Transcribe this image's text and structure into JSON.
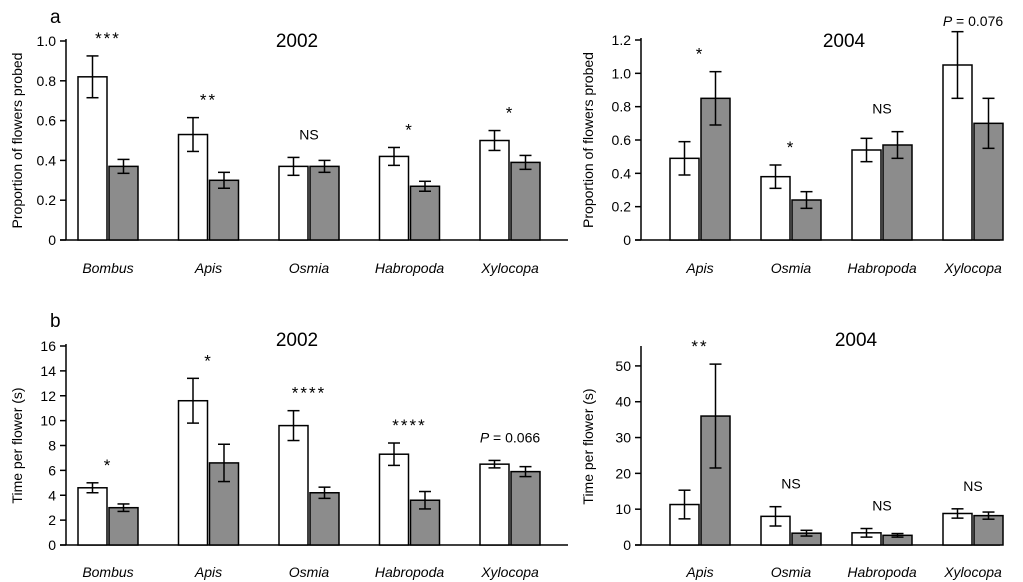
{
  "panel_labels": {
    "a": "a",
    "b": "b"
  },
  "colors": {
    "control": "#ffffff",
    "treatment": "#8c8c8c",
    "stroke": "#000000"
  },
  "chart_data": [
    {
      "type": "bar",
      "title": "2002",
      "ylabel": "Proportion of flowers probed",
      "ylim": [
        0,
        1.0
      ],
      "yticks": [
        0,
        0.2,
        0.4,
        0.6,
        0.8,
        1.0
      ],
      "ytick_labels": [
        "0",
        "0.2",
        "0.4",
        "0.6",
        "0.8",
        "1.0"
      ],
      "categories": [
        "Bombus",
        "Apis",
        "Osmia",
        "Habropoda",
        "Xylocopa"
      ],
      "series": [
        {
          "fill": "#ffffff",
          "values": [
            0.82,
            0.53,
            0.37,
            0.42,
            0.5
          ],
          "errors": [
            0.105,
            0.085,
            0.045,
            0.045,
            0.05
          ]
        },
        {
          "fill": "#8c8c8c",
          "values": [
            0.37,
            0.3,
            0.37,
            0.27,
            0.39
          ],
          "errors": [
            0.035,
            0.04,
            0.03,
            0.025,
            0.035
          ]
        }
      ],
      "significance": [
        "***",
        "**",
        "NS",
        "*",
        "*"
      ]
    },
    {
      "type": "bar",
      "title": "2004",
      "ylabel": "Proportion of flowers probed",
      "ylim": [
        0,
        1.2
      ],
      "yticks": [
        0,
        0.2,
        0.4,
        0.6,
        0.8,
        1.0,
        1.2
      ],
      "ytick_labels": [
        "0",
        "0.2",
        "0.4",
        "0.6",
        "0.8",
        "1.0",
        "1.2"
      ],
      "categories": [
        "Apis",
        "Osmia",
        "Habropoda",
        "Xylocopa"
      ],
      "series": [
        {
          "fill": "#ffffff",
          "values": [
            0.49,
            0.38,
            0.54,
            1.05
          ],
          "errors": [
            0.1,
            0.07,
            0.07,
            0.2
          ]
        },
        {
          "fill": "#8c8c8c",
          "values": [
            0.85,
            0.24,
            0.57,
            0.7
          ],
          "errors": [
            0.16,
            0.05,
            0.08,
            0.15
          ]
        }
      ],
      "significance": [
        "*",
        "*",
        "NS",
        "P = 0.076"
      ]
    },
    {
      "type": "bar",
      "title": "2002",
      "ylabel": "Time per flower (s)",
      "ylim": [
        0,
        16
      ],
      "yticks": [
        0,
        2,
        4,
        6,
        8,
        10,
        12,
        14,
        16
      ],
      "ytick_labels": [
        "0",
        "2",
        "4",
        "6",
        "8",
        "10",
        "12",
        "14",
        "16"
      ],
      "categories": [
        "Bombus",
        "Apis",
        "Osmia",
        "Habropoda",
        "Xylocopa"
      ],
      "series": [
        {
          "fill": "#ffffff",
          "values": [
            4.6,
            11.6,
            9.6,
            7.3,
            6.5
          ],
          "errors": [
            0.4,
            1.8,
            1.2,
            0.9,
            0.3
          ]
        },
        {
          "fill": "#8c8c8c",
          "values": [
            3.0,
            6.6,
            4.2,
            3.6,
            5.9
          ],
          "errors": [
            0.3,
            1.5,
            0.45,
            0.7,
            0.4
          ]
        }
      ],
      "significance": [
        "*",
        "*",
        "****",
        "****",
        "P = 0.066"
      ]
    },
    {
      "type": "bar",
      "title": "2004",
      "ylabel": "Time per flower (s)",
      "ylim": [
        0,
        55
      ],
      "yticks": [
        0,
        10,
        20,
        30,
        40,
        50
      ],
      "ytick_labels": [
        "0",
        "10",
        "20",
        "30",
        "40",
        "50"
      ],
      "categories": [
        "Apis",
        "Osmia",
        "Habropoda",
        "Xylocopa"
      ],
      "series": [
        {
          "fill": "#ffffff",
          "values": [
            11.3,
            8.0,
            3.4,
            8.8
          ],
          "errors": [
            4.0,
            2.7,
            1.2,
            1.3
          ]
        },
        {
          "fill": "#8c8c8c",
          "values": [
            36.0,
            3.3,
            2.7,
            8.2
          ],
          "errors": [
            14.5,
            0.8,
            0.5,
            1.0
          ]
        }
      ],
      "significance": [
        "**",
        "NS",
        "NS",
        "NS"
      ]
    }
  ]
}
